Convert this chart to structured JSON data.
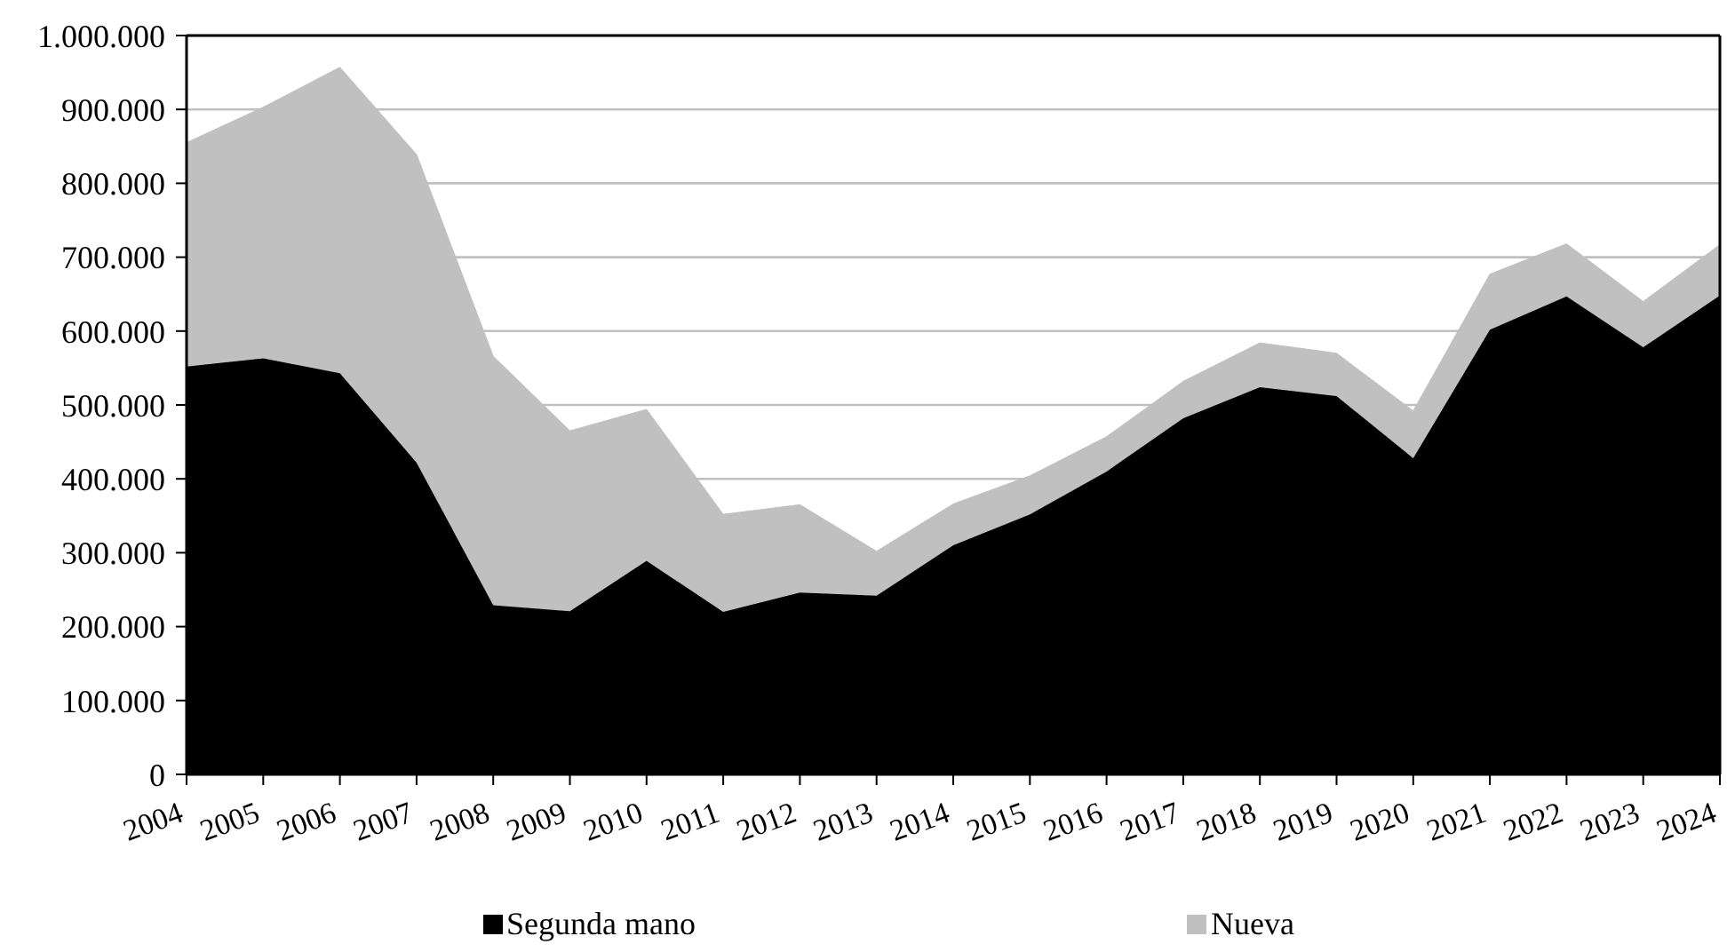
{
  "chart_data": {
    "type": "area",
    "stacked": true,
    "categories": [
      "2004",
      "2005",
      "2006",
      "2007",
      "2008",
      "2009",
      "2010",
      "2011",
      "2012",
      "2013",
      "2014",
      "2015",
      "2016",
      "2017",
      "2018",
      "2019",
      "2020",
      "2021",
      "2022",
      "2023",
      "2024"
    ],
    "series": [
      {
        "name": "Segunda mano",
        "color": "#000000",
        "values": [
          552000,
          563000,
          543000,
          422000,
          229000,
          221000,
          289000,
          220000,
          246000,
          242000,
          310000,
          352000,
          410000,
          482000,
          524000,
          512000,
          428000,
          602000,
          647000,
          578000,
          648000
        ]
      },
      {
        "name": "Nueva",
        "color": "#c0c0c0",
        "values": [
          303000,
          340000,
          414000,
          417000,
          337000,
          244000,
          205000,
          132000,
          119000,
          60000,
          56000,
          52000,
          47000,
          50000,
          60000,
          58000,
          64000,
          75000,
          71000,
          62000,
          69000
        ]
      }
    ],
    "ylim": [
      0,
      1000000
    ],
    "yticks": [
      0,
      {
        "value": 100000,
        "label": "100.000"
      },
      {
        "value": 200000,
        "label": "200.000"
      },
      {
        "value": 300000,
        "label": "300.000"
      },
      {
        "value": 400000,
        "label": "400.000"
      },
      {
        "value": 500000,
        "label": "500.000"
      },
      {
        "value": 600000,
        "label": "600.000"
      },
      {
        "value": 700000,
        "label": "700.000"
      },
      {
        "value": 800000,
        "label": "800.000"
      },
      {
        "value": 900000,
        "label": "900.000"
      },
      {
        "value": 1000000,
        "label": "1.000.000"
      }
    ],
    "grid": "y",
    "legend": "bottom"
  }
}
